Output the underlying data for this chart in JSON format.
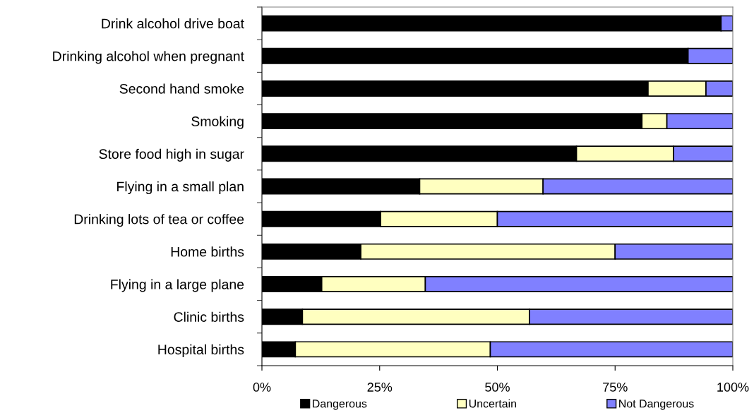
{
  "chart_data": {
    "type": "bar",
    "orientation": "horizontal",
    "stacked": true,
    "categories": [
      "Drink alcohol drive boat",
      "Drinking alcohol when pregnant",
      "Second hand smoke",
      "Smoking",
      "Store food high in sugar",
      "Flying in a small plan",
      "Drinking lots of tea or coffee",
      "Home births",
      "Flying in a large plane",
      "Clinic births",
      "Hospital births"
    ],
    "series": [
      {
        "name": "Dangerous",
        "color": "#000000",
        "values": [
          97.5,
          90.5,
          82.0,
          80.7,
          66.8,
          33.5,
          25.2,
          21.0,
          12.7,
          8.6,
          7.1
        ]
      },
      {
        "name": "Uncertain",
        "color": "#ffffc0",
        "values": [
          0,
          0,
          12.3,
          5.3,
          20.6,
          26.2,
          24.8,
          54.0,
          22.0,
          48.2,
          41.4
        ]
      },
      {
        "name": "Not Dangerous",
        "color": "#8080ff",
        "values": [
          2.5,
          9.5,
          5.7,
          14.0,
          12.6,
          40.3,
          50.0,
          25.0,
          65.3,
          43.2,
          51.5
        ]
      }
    ],
    "xlim": [
      0,
      100
    ],
    "xticks": [
      {
        "value": 0,
        "label": "0%"
      },
      {
        "value": 25,
        "label": "25%"
      },
      {
        "value": 50,
        "label": "50%"
      },
      {
        "value": 75,
        "label": "75%"
      },
      {
        "value": 100,
        "label": "100%"
      }
    ],
    "grid": false,
    "legend": "bottom"
  }
}
